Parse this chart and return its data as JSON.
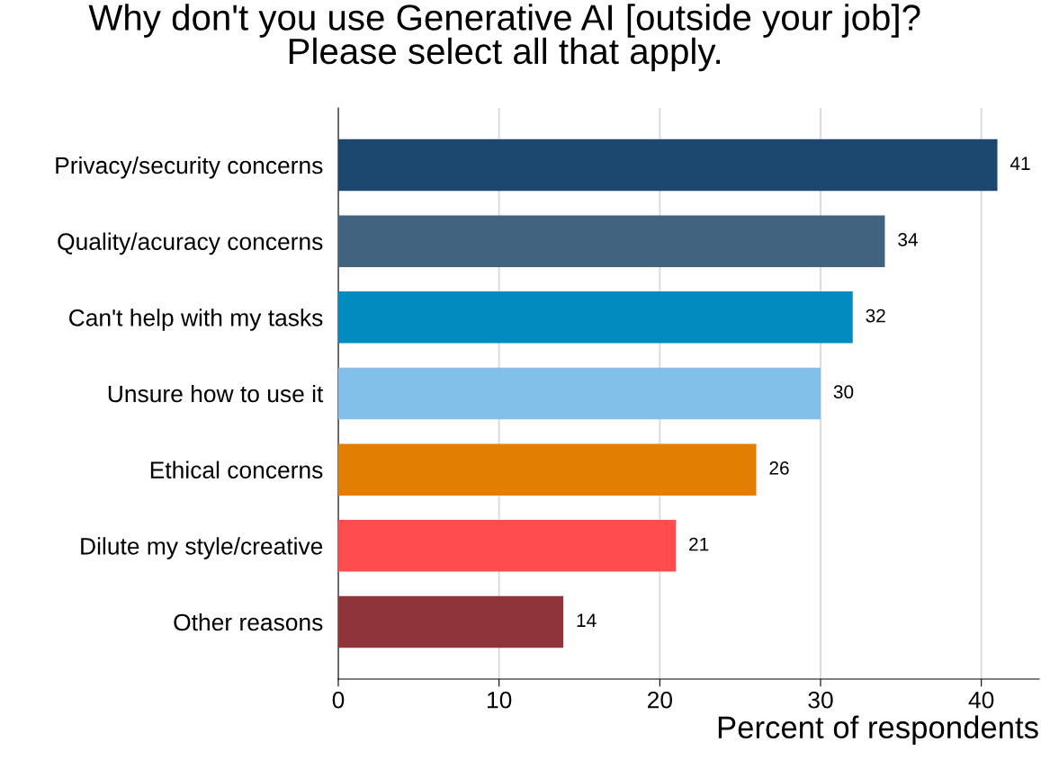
{
  "chart_data": {
    "type": "bar",
    "orientation": "horizontal",
    "title": "Why don't you use Generative AI [outside your job]?\nPlease select all that apply.",
    "xlabel": "Percent of respondents",
    "categories": [
      "Privacy/security concerns",
      "Quality/acuracy concerns",
      "Can't help with my tasks",
      "Unsure how to use it",
      "Ethical concerns",
      "Dilute my style/creative",
      "Other reasons"
    ],
    "values": [
      41,
      34,
      32,
      30,
      26,
      21,
      14
    ],
    "colors": [
      "#1c4870",
      "#41637f",
      "#028bbf",
      "#83c0e9",
      "#e27e02",
      "#ff4d4f",
      "#8e343a"
    ],
    "xlim": [
      0,
      43.6
    ],
    "xticks": [
      0,
      10,
      20,
      30,
      40
    ],
    "grid": "x",
    "data_labels": true
  }
}
